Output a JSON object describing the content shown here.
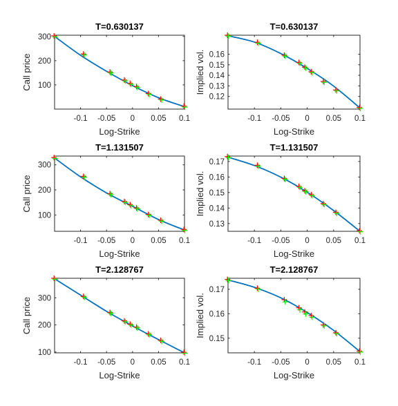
{
  "chart_data": [
    {
      "type": "line",
      "title": "T=0.630137",
      "xlabel": "Log-Strike",
      "ylabel": "Call price",
      "xlim": [
        -0.15,
        0.1
      ],
      "ylim": [
        0,
        305
      ],
      "xticks": [
        -0.1,
        -0.05,
        0,
        0.05,
        0.1
      ],
      "xtick_labels": [
        "-0.1",
        "-0.05",
        "0",
        "0.05",
        "0.1"
      ],
      "yticks": [
        100,
        200,
        300
      ],
      "ytick_labels": [
        "100",
        "200",
        "300"
      ],
      "grid": false,
      "series": [
        {
          "style": "model-curve",
          "color": "#0072BD",
          "x": [
            -0.15,
            -0.1,
            -0.05,
            0,
            0.05,
            0.1
          ],
          "y": [
            300,
            222,
            156,
            97,
            47,
            10
          ]
        },
        {
          "style": "red-plus-markers",
          "color": "#FF0000",
          "x": [
            -0.15,
            -0.0934,
            -0.0424,
            -0.0147,
            -0.0036,
            0.0087,
            0.0315,
            0.0553,
            0.1
          ],
          "y": [
            300,
            225,
            151,
            118,
            104,
            91,
            62,
            39,
            10
          ]
        },
        {
          "style": "green-plus-markers",
          "color": "#00FF00",
          "x": [
            -0.15,
            -0.0934,
            -0.0424,
            -0.0147,
            -0.0036,
            0.0087,
            0.0315,
            0.0553,
            0.1
          ],
          "y": [
            300,
            225,
            151,
            118,
            104,
            91,
            62,
            39,
            10
          ]
        }
      ]
    },
    {
      "type": "line",
      "title": "T=0.630137",
      "xlabel": "Log-Strike",
      "ylabel": "Implied vol.",
      "xlim": [
        -0.15,
        0.1
      ],
      "ylim": [
        0.108,
        0.178
      ],
      "xticks": [
        -0.1,
        -0.05,
        0,
        0.05,
        0.1
      ],
      "xtick_labels": [
        "-0.1",
        "-0.05",
        "0",
        "0.05",
        "0.1"
      ],
      "yticks": [
        0.12,
        0.13,
        0.14,
        0.15,
        0.16
      ],
      "ytick_labels": [
        "0.12",
        "0.13",
        "0.14",
        "0.15",
        "0.16"
      ],
      "grid": false,
      "series": [
        {
          "style": "model-curve",
          "color": "#0072BD",
          "x": [
            -0.15,
            -0.1,
            -0.05,
            0,
            0.05,
            0.1
          ],
          "y": [
            0.1775,
            0.1715,
            0.1606,
            0.1465,
            0.1298,
            0.109
          ]
        },
        {
          "style": "red-plus-markers",
          "color": "#FF0000",
          "x": [
            -0.15,
            -0.0934,
            -0.0424,
            -0.0147,
            -0.0036,
            0.0087,
            0.0315,
            0.0553,
            0.1
          ],
          "y": [
            0.1775,
            0.1708,
            0.1586,
            0.1517,
            0.1472,
            0.1429,
            0.1337,
            0.1256,
            0.109
          ]
        },
        {
          "style": "green-plus-markers",
          "color": "#00FF00",
          "x": [
            -0.15,
            -0.0934,
            -0.0424,
            -0.0147,
            -0.0036,
            0.0087,
            0.0315,
            0.0553,
            0.1
          ],
          "y": [
            0.1775,
            0.1708,
            0.1586,
            0.1517,
            0.1472,
            0.1429,
            0.1337,
            0.1256,
            0.109
          ]
        }
      ]
    },
    {
      "type": "line",
      "title": "T=1.131507",
      "xlabel": "Log-Strike",
      "ylabel": "Call price",
      "xlim": [
        -0.15,
        0.1
      ],
      "ylim": [
        35,
        335
      ],
      "xticks": [
        -0.1,
        -0.05,
        0,
        0.05,
        0.1
      ],
      "xtick_labels": [
        "-0.1",
        "-0.05",
        "0",
        "0.05",
        "0.1"
      ],
      "yticks": [
        100,
        200,
        300
      ],
      "ytick_labels": [
        "100",
        "200",
        "300"
      ],
      "grid": false,
      "series": [
        {
          "style": "model-curve",
          "color": "#0072BD",
          "x": [
            -0.15,
            -0.1,
            -0.05,
            0,
            0.05,
            0.1
          ],
          "y": [
            327,
            252,
            188,
            135,
            82,
            40
          ]
        },
        {
          "style": "red-plus-markers",
          "color": "#FF0000",
          "x": [
            -0.15,
            -0.0934,
            -0.0424,
            -0.0147,
            -0.0036,
            0.0087,
            0.0315,
            0.0553,
            0.1
          ],
          "y": [
            327,
            252,
            183,
            152,
            139,
            126,
            100,
            77,
            40
          ]
        },
        {
          "style": "green-plus-markers",
          "color": "#00FF00",
          "x": [
            -0.15,
            -0.0934,
            -0.0424,
            -0.0147,
            -0.0036,
            0.0087,
            0.0315,
            0.0553,
            0.1
          ],
          "y": [
            327,
            252,
            183,
            152,
            139,
            126,
            100,
            77,
            40
          ]
        }
      ]
    },
    {
      "type": "line",
      "title": "T=1.131507",
      "xlabel": "Log-Strike",
      "ylabel": "Implied vol.",
      "xlim": [
        -0.15,
        0.1
      ],
      "ylim": [
        0.125,
        0.1735
      ],
      "xticks": [
        -0.1,
        -0.05,
        0,
        0.05,
        0.1
      ],
      "xtick_labels": [
        "-0.1",
        "-0.05",
        "0",
        "0.05",
        "0.1"
      ],
      "yticks": [
        0.13,
        0.14,
        0.15,
        0.16,
        0.17
      ],
      "ytick_labels": [
        "0.13",
        "0.14",
        "0.15",
        "0.16",
        "0.17"
      ],
      "grid": false,
      "series": [
        {
          "style": "model-curve",
          "color": "#0072BD",
          "x": [
            -0.15,
            -0.1,
            -0.05,
            0,
            0.05,
            0.1
          ],
          "y": [
            0.1728,
            0.1674,
            0.1599,
            0.1502,
            0.1384,
            0.125
          ]
        },
        {
          "style": "red-plus-markers",
          "color": "#FF0000",
          "x": [
            -0.15,
            -0.0934,
            -0.0424,
            -0.0147,
            -0.0036,
            0.0087,
            0.0315,
            0.0553,
            0.1
          ],
          "y": [
            0.1728,
            0.1672,
            0.1587,
            0.1536,
            0.1508,
            0.1483,
            0.1425,
            0.1369,
            0.125
          ]
        },
        {
          "style": "green-plus-markers",
          "color": "#00FF00",
          "x": [
            -0.15,
            -0.0934,
            -0.0424,
            -0.0147,
            -0.0036,
            0.0087,
            0.0315,
            0.0553,
            0.1
          ],
          "y": [
            0.1728,
            0.1672,
            0.1587,
            0.1536,
            0.1508,
            0.1483,
            0.1425,
            0.1369,
            0.125
          ]
        }
      ]
    },
    {
      "type": "line",
      "title": "T=2.128767",
      "xlabel": "Log-Strike",
      "ylabel": "Call price",
      "xlim": [
        -0.15,
        0.1
      ],
      "ylim": [
        97,
        372
      ],
      "xticks": [
        -0.1,
        -0.05,
        0,
        0.05,
        0.1
      ],
      "xtick_labels": [
        "-0.1",
        "-0.05",
        "0",
        "0.05",
        "0.1"
      ],
      "yticks": [
        100,
        200,
        300
      ],
      "ytick_labels": [
        "100",
        "200",
        "300"
      ],
      "grid": false,
      "series": [
        {
          "style": "model-curve",
          "color": "#0072BD",
          "x": [
            -0.15,
            -0.1,
            -0.05,
            0,
            0.05,
            0.1
          ],
          "y": [
            370,
            310,
            250,
            196,
            146,
            97
          ]
        },
        {
          "style": "red-plus-markers",
          "color": "#FF0000",
          "x": [
            -0.15,
            -0.0934,
            -0.0424,
            -0.0147,
            -0.0036,
            0.0087,
            0.0315,
            0.0553,
            0.1
          ],
          "y": [
            370,
            303,
            244,
            213,
            201,
            190,
            165,
            141,
            97
          ]
        },
        {
          "style": "green-plus-markers",
          "color": "#00FF00",
          "x": [
            -0.15,
            -0.0934,
            -0.0424,
            -0.0147,
            -0.0036,
            0.0087,
            0.0315,
            0.0553,
            0.1
          ],
          "y": [
            370,
            303,
            244,
            213,
            201,
            190,
            165,
            141,
            97
          ]
        }
      ]
    },
    {
      "type": "line",
      "title": "T=2.128767",
      "xlabel": "Log-Strike",
      "ylabel": "Implied vol.",
      "xlim": [
        -0.15,
        0.1
      ],
      "ylim": [
        0.144,
        0.1745
      ],
      "xticks": [
        -0.1,
        -0.05,
        0,
        0.05,
        0.1
      ],
      "xtick_labels": [
        "-0.1",
        "-0.05",
        "0",
        "0.05",
        "0.1"
      ],
      "yticks": [
        0.15,
        0.16,
        0.17
      ],
      "ytick_labels": [
        "0.15",
        "0.16",
        "0.17"
      ],
      "grid": false,
      "series": [
        {
          "style": "model-curve",
          "color": "#0072BD",
          "x": [
            -0.15,
            -0.1,
            -0.05,
            0,
            0.05,
            0.1
          ],
          "y": [
            0.1738,
            0.1708,
            0.1665,
            0.1605,
            0.1532,
            0.1445
          ]
        },
        {
          "style": "red-plus-markers",
          "color": "#FF0000",
          "x": [
            -0.15,
            -0.0934,
            -0.0424,
            -0.0147,
            -0.0036,
            0.0087,
            0.0315,
            0.0553,
            0.1
          ],
          "y": [
            0.1738,
            0.1702,
            0.1655,
            0.1622,
            0.1605,
            0.159,
            0.1552,
            0.152,
            0.1445
          ]
        },
        {
          "style": "green-plus-markers",
          "color": "#00FF00",
          "x": [
            -0.15,
            -0.0934,
            -0.0424,
            -0.0147,
            -0.0036,
            0.0087,
            0.0315,
            0.0553,
            0.1
          ],
          "y": [
            0.1738,
            0.1702,
            0.165,
            0.1618,
            0.1601,
            0.1587,
            0.1552,
            0.152,
            0.1445
          ]
        }
      ]
    }
  ]
}
